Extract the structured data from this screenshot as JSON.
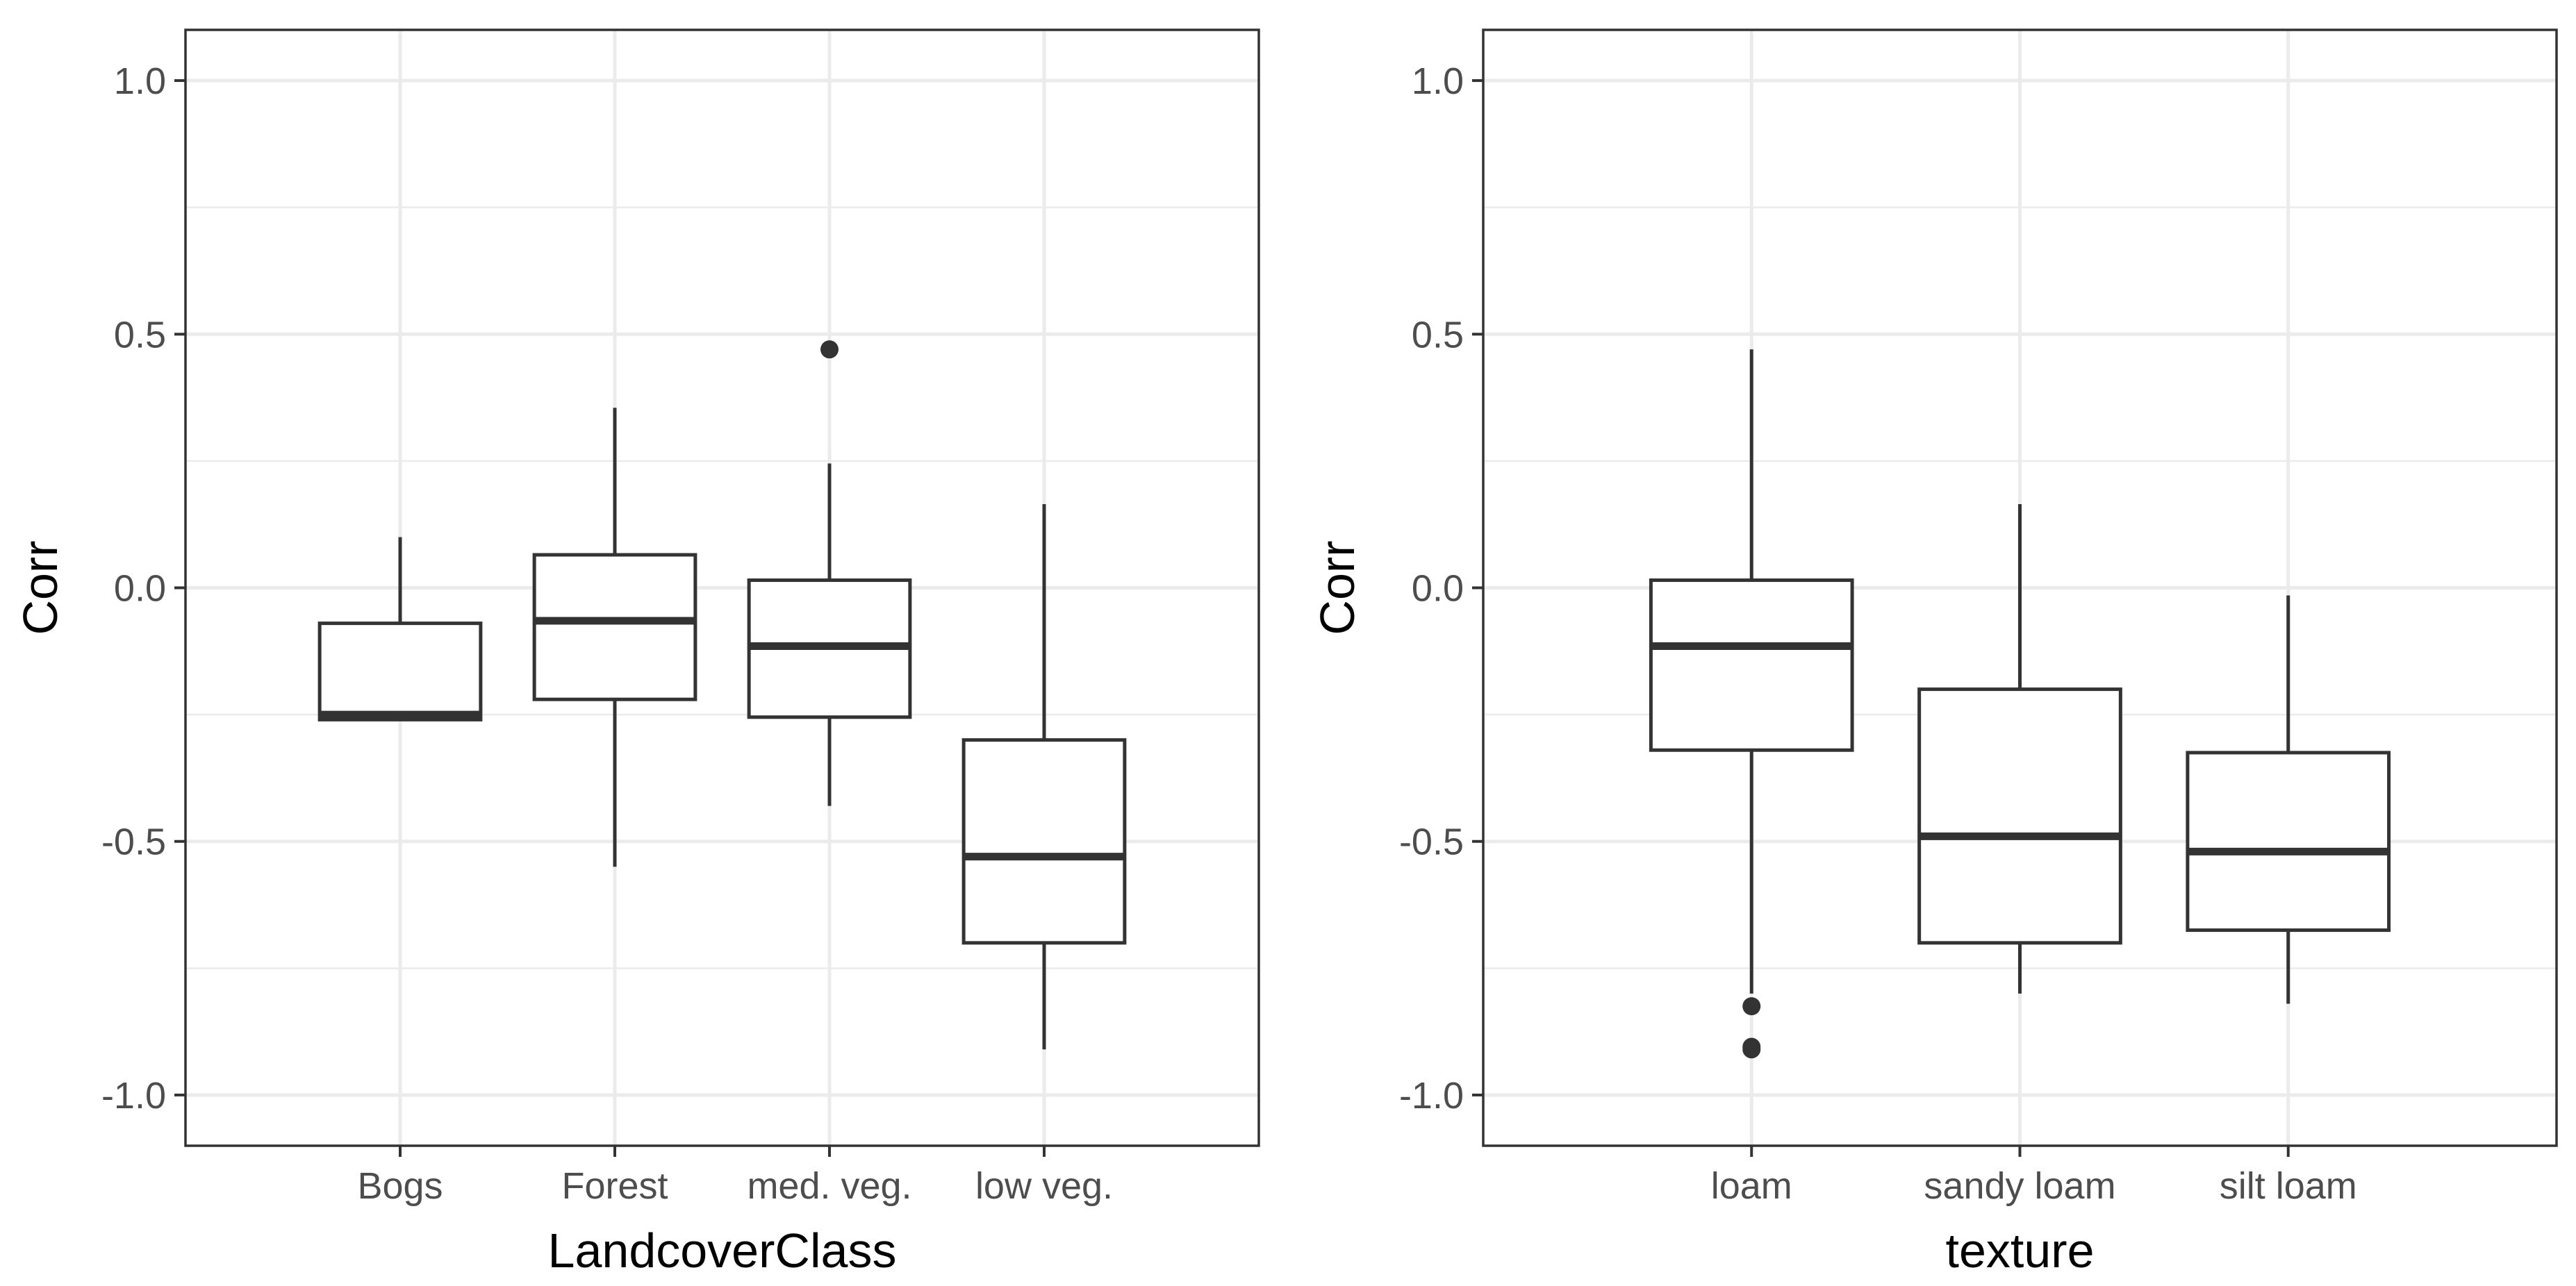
{
  "colors": {
    "box_stroke": "#333333",
    "grid": "#ebebeb",
    "tick_text": "#4d4d4d"
  },
  "chart_data": [
    {
      "type": "boxplot",
      "title": "",
      "xlabel": "LandcoverClass",
      "ylabel": "Corr",
      "ylim": [
        -1.1,
        1.1
      ],
      "yticks": [
        -1.0,
        -0.5,
        0.0,
        0.5,
        1.0
      ],
      "ytick_labels": [
        "-1.0",
        "-0.5",
        "0.0",
        "0.5",
        "1.0"
      ],
      "grid": true,
      "categories": [
        "Bogs",
        "Forest",
        "med. veg.",
        "low veg."
      ],
      "boxes": [
        {
          "category": "Bogs",
          "whisker_low": -0.26,
          "q1": -0.26,
          "median": -0.25,
          "q3": -0.07,
          "whisker_high": 0.1,
          "outliers": []
        },
        {
          "category": "Forest",
          "whisker_low": -0.55,
          "q1": -0.22,
          "median": -0.065,
          "q3": 0.065,
          "whisker_high": 0.355,
          "outliers": []
        },
        {
          "category": "med. veg.",
          "whisker_low": -0.43,
          "q1": -0.255,
          "median": -0.115,
          "q3": 0.015,
          "whisker_high": 0.245,
          "outliers": [
            0.47
          ]
        },
        {
          "category": "low veg.",
          "whisker_low": -0.91,
          "q1": -0.7,
          "median": -0.53,
          "q3": -0.3,
          "whisker_high": 0.165,
          "outliers": []
        }
      ]
    },
    {
      "type": "boxplot",
      "title": "",
      "xlabel": "texture",
      "ylabel": "Corr",
      "ylim": [
        -1.1,
        1.1
      ],
      "yticks": [
        -1.0,
        -0.5,
        0.0,
        0.5,
        1.0
      ],
      "ytick_labels": [
        "-1.0",
        "-0.5",
        "0.0",
        "0.5",
        "1.0"
      ],
      "grid": true,
      "categories": [
        "loam",
        "sandy loam",
        "silt loam"
      ],
      "boxes": [
        {
          "category": "loam",
          "whisker_low": -0.8,
          "q1": -0.32,
          "median": -0.115,
          "q3": 0.015,
          "whisker_high": 0.47,
          "outliers": [
            -0.825,
            -0.905,
            -0.91
          ]
        },
        {
          "category": "sandy loam",
          "whisker_low": -0.8,
          "q1": -0.7,
          "median": -0.49,
          "q3": -0.2,
          "whisker_high": 0.165,
          "outliers": []
        },
        {
          "category": "silt loam",
          "whisker_low": -0.82,
          "q1": -0.675,
          "median": -0.52,
          "q3": -0.325,
          "whisker_high": -0.015,
          "outliers": []
        }
      ]
    }
  ]
}
